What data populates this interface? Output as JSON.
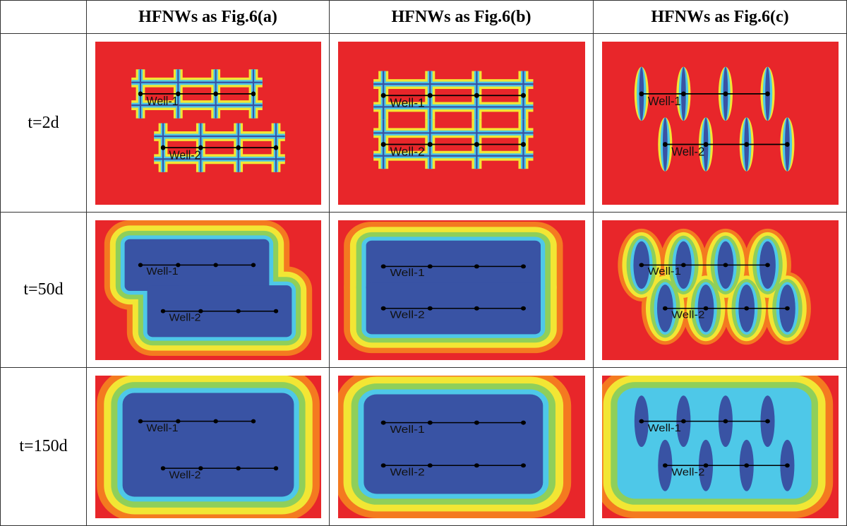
{
  "table": {
    "columns": [
      "HFNWs as Fig.6(a)",
      "HFNWs as Fig.6(b)",
      "HFNWs as Fig.6(c)"
    ],
    "rows": [
      {
        "label": "t=2d",
        "cells": [
          {
            "wells": [
              "Well-1",
              "Well-2"
            ]
          },
          {
            "wells": [
              "Well-1",
              "Well-2"
            ]
          },
          {
            "wells": [
              "Well-1",
              "Well-2"
            ]
          }
        ]
      },
      {
        "label": "t=50d",
        "cells": [
          {
            "wells": [
              "Well-1",
              "Well-2"
            ]
          },
          {
            "wells": [
              "Well-1",
              "Well-2"
            ]
          },
          {
            "wells": [
              "Well-1",
              "Well-2"
            ]
          }
        ]
      },
      {
        "label": "t=150d",
        "cells": [
          {
            "wells": [
              "Well-1",
              "Well-2"
            ]
          },
          {
            "wells": [
              "Well-1",
              "Well-2"
            ]
          },
          {
            "wells": [
              "Well-1",
              "Well-2"
            ]
          }
        ]
      }
    ]
  }
}
